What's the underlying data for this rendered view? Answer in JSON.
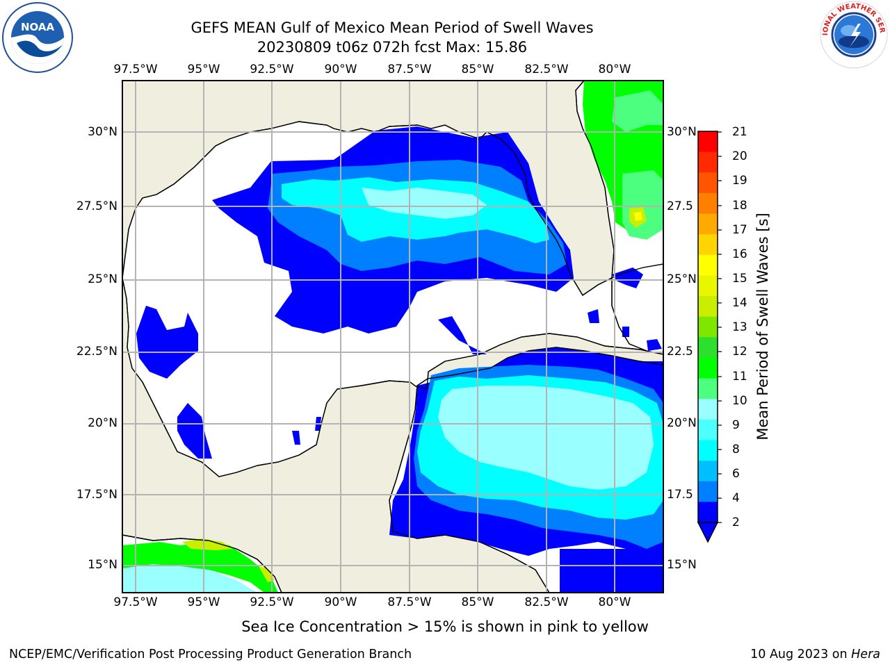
{
  "title_line1": "GEFS MEAN Gulf of Mexico Mean Period of Swell Waves",
  "title_line2": "20230809 t06z 072h fcst   Max: 15.86",
  "lon_labels": [
    "97.5°W",
    "95°W",
    "92.5°W",
    "90°W",
    "87.5°W",
    "85°W",
    "82.5°W",
    "80°W"
  ],
  "lat_labels_left": [
    "30°N",
    "27.5°N",
    "25°N",
    "22.5°N",
    "20°N",
    "17.5°N",
    "15°N"
  ],
  "lat_labels_right": [
    "30°N",
    "27.5",
    "25°N",
    "22.5",
    "20°N",
    "17.5",
    "15°N"
  ],
  "colorbar": {
    "title": "Mean Period of Swell Waves [s]",
    "ticks": [
      "21",
      "20",
      "19",
      "18",
      "17",
      "16",
      "15",
      "14",
      "13",
      "12",
      "11",
      "10",
      "9",
      "8",
      "6",
      "4",
      "2"
    ],
    "colors": [
      "#ff0000",
      "#ff2a00",
      "#ff5500",
      "#ff8000",
      "#ffaa00",
      "#ffd400",
      "#ffff00",
      "#e8f700",
      "#c9ee00",
      "#7fe600",
      "#2ee02e",
      "#00ff00",
      "#4dff7f",
      "#99ffff",
      "#4dffff",
      "#00ffff",
      "#00bfff",
      "#007fff",
      "#0000ff"
    ]
  },
  "note": "Sea Ice Concentration > 15% is shown in pink to yellow",
  "footer_left": "NCEP/EMC/Verification Post Processing Product Generation Branch",
  "footer_right_date": "10 Aug 2023 on ",
  "footer_right_host": "Hera",
  "logos": {
    "left": "NOAA",
    "right": "NATIONAL WEATHER SERVICE"
  }
}
